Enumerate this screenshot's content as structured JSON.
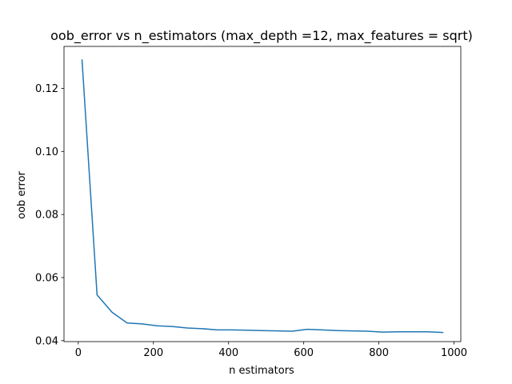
{
  "chart_data": {
    "type": "line",
    "title": "oob_error vs n_estimators (max_depth =12, max_features = sqrt)",
    "xlabel": "n estimators",
    "ylabel": "oob error",
    "xlim": [
      -38,
      1018
    ],
    "ylim": [
      0.0397,
      0.1333
    ],
    "xticks": [
      0,
      200,
      400,
      600,
      800,
      1000
    ],
    "yticks": [
      0.04,
      0.06,
      0.08,
      0.1,
      0.12
    ],
    "ytick_labels": [
      "0.04",
      "0.06",
      "0.08",
      "0.10",
      "0.12"
    ],
    "grid": false,
    "series": [
      {
        "color": "#1f77b4",
        "x": [
          10,
          50,
          90,
          130,
          170,
          210,
          250,
          290,
          330,
          370,
          410,
          450,
          490,
          530,
          570,
          610,
          650,
          690,
          730,
          770,
          810,
          850,
          890,
          930,
          970
        ],
        "y": [
          0.129,
          0.0545,
          0.049,
          0.0456,
          0.0453,
          0.0447,
          0.0445,
          0.044,
          0.0438,
          0.0434,
          0.0434,
          0.0433,
          0.0432,
          0.0431,
          0.043,
          0.0436,
          0.0434,
          0.0432,
          0.0431,
          0.043,
          0.0427,
          0.0428,
          0.0428,
          0.0428,
          0.0426
        ]
      }
    ]
  }
}
